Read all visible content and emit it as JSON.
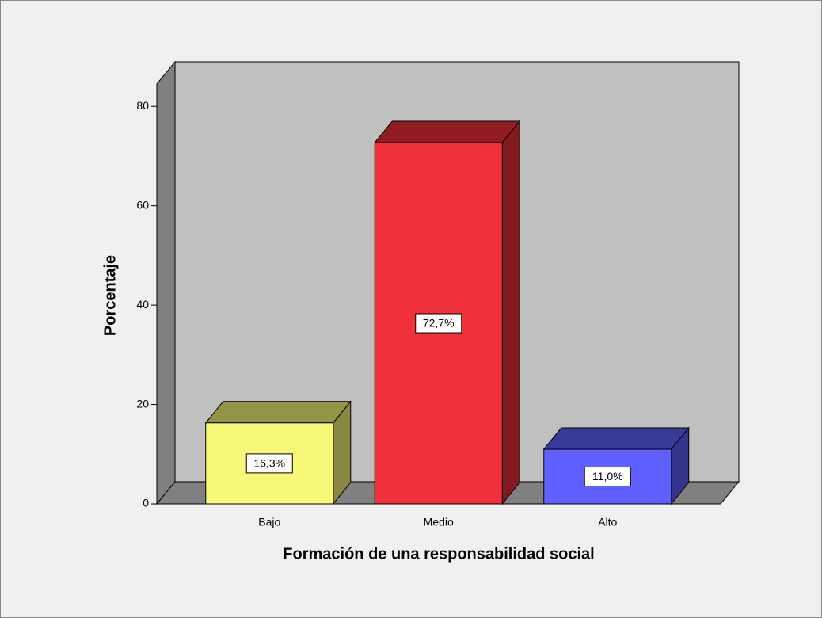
{
  "chart_data": {
    "type": "bar3d",
    "categories": [
      "Bajo",
      "Medio",
      "Alto"
    ],
    "values": [
      16.3,
      72.7,
      11.0
    ],
    "value_labels": [
      "16,3%",
      "72,7%",
      "11,0%"
    ],
    "colors": [
      "#f8f878",
      "#f0303a",
      "#6060ff"
    ],
    "ylim": [
      0,
      84.5
    ],
    "yticks": [
      0,
      20,
      40,
      60,
      80
    ],
    "x_label": "Formación de una responsabilidad social",
    "y_label": "Porcentaje"
  }
}
